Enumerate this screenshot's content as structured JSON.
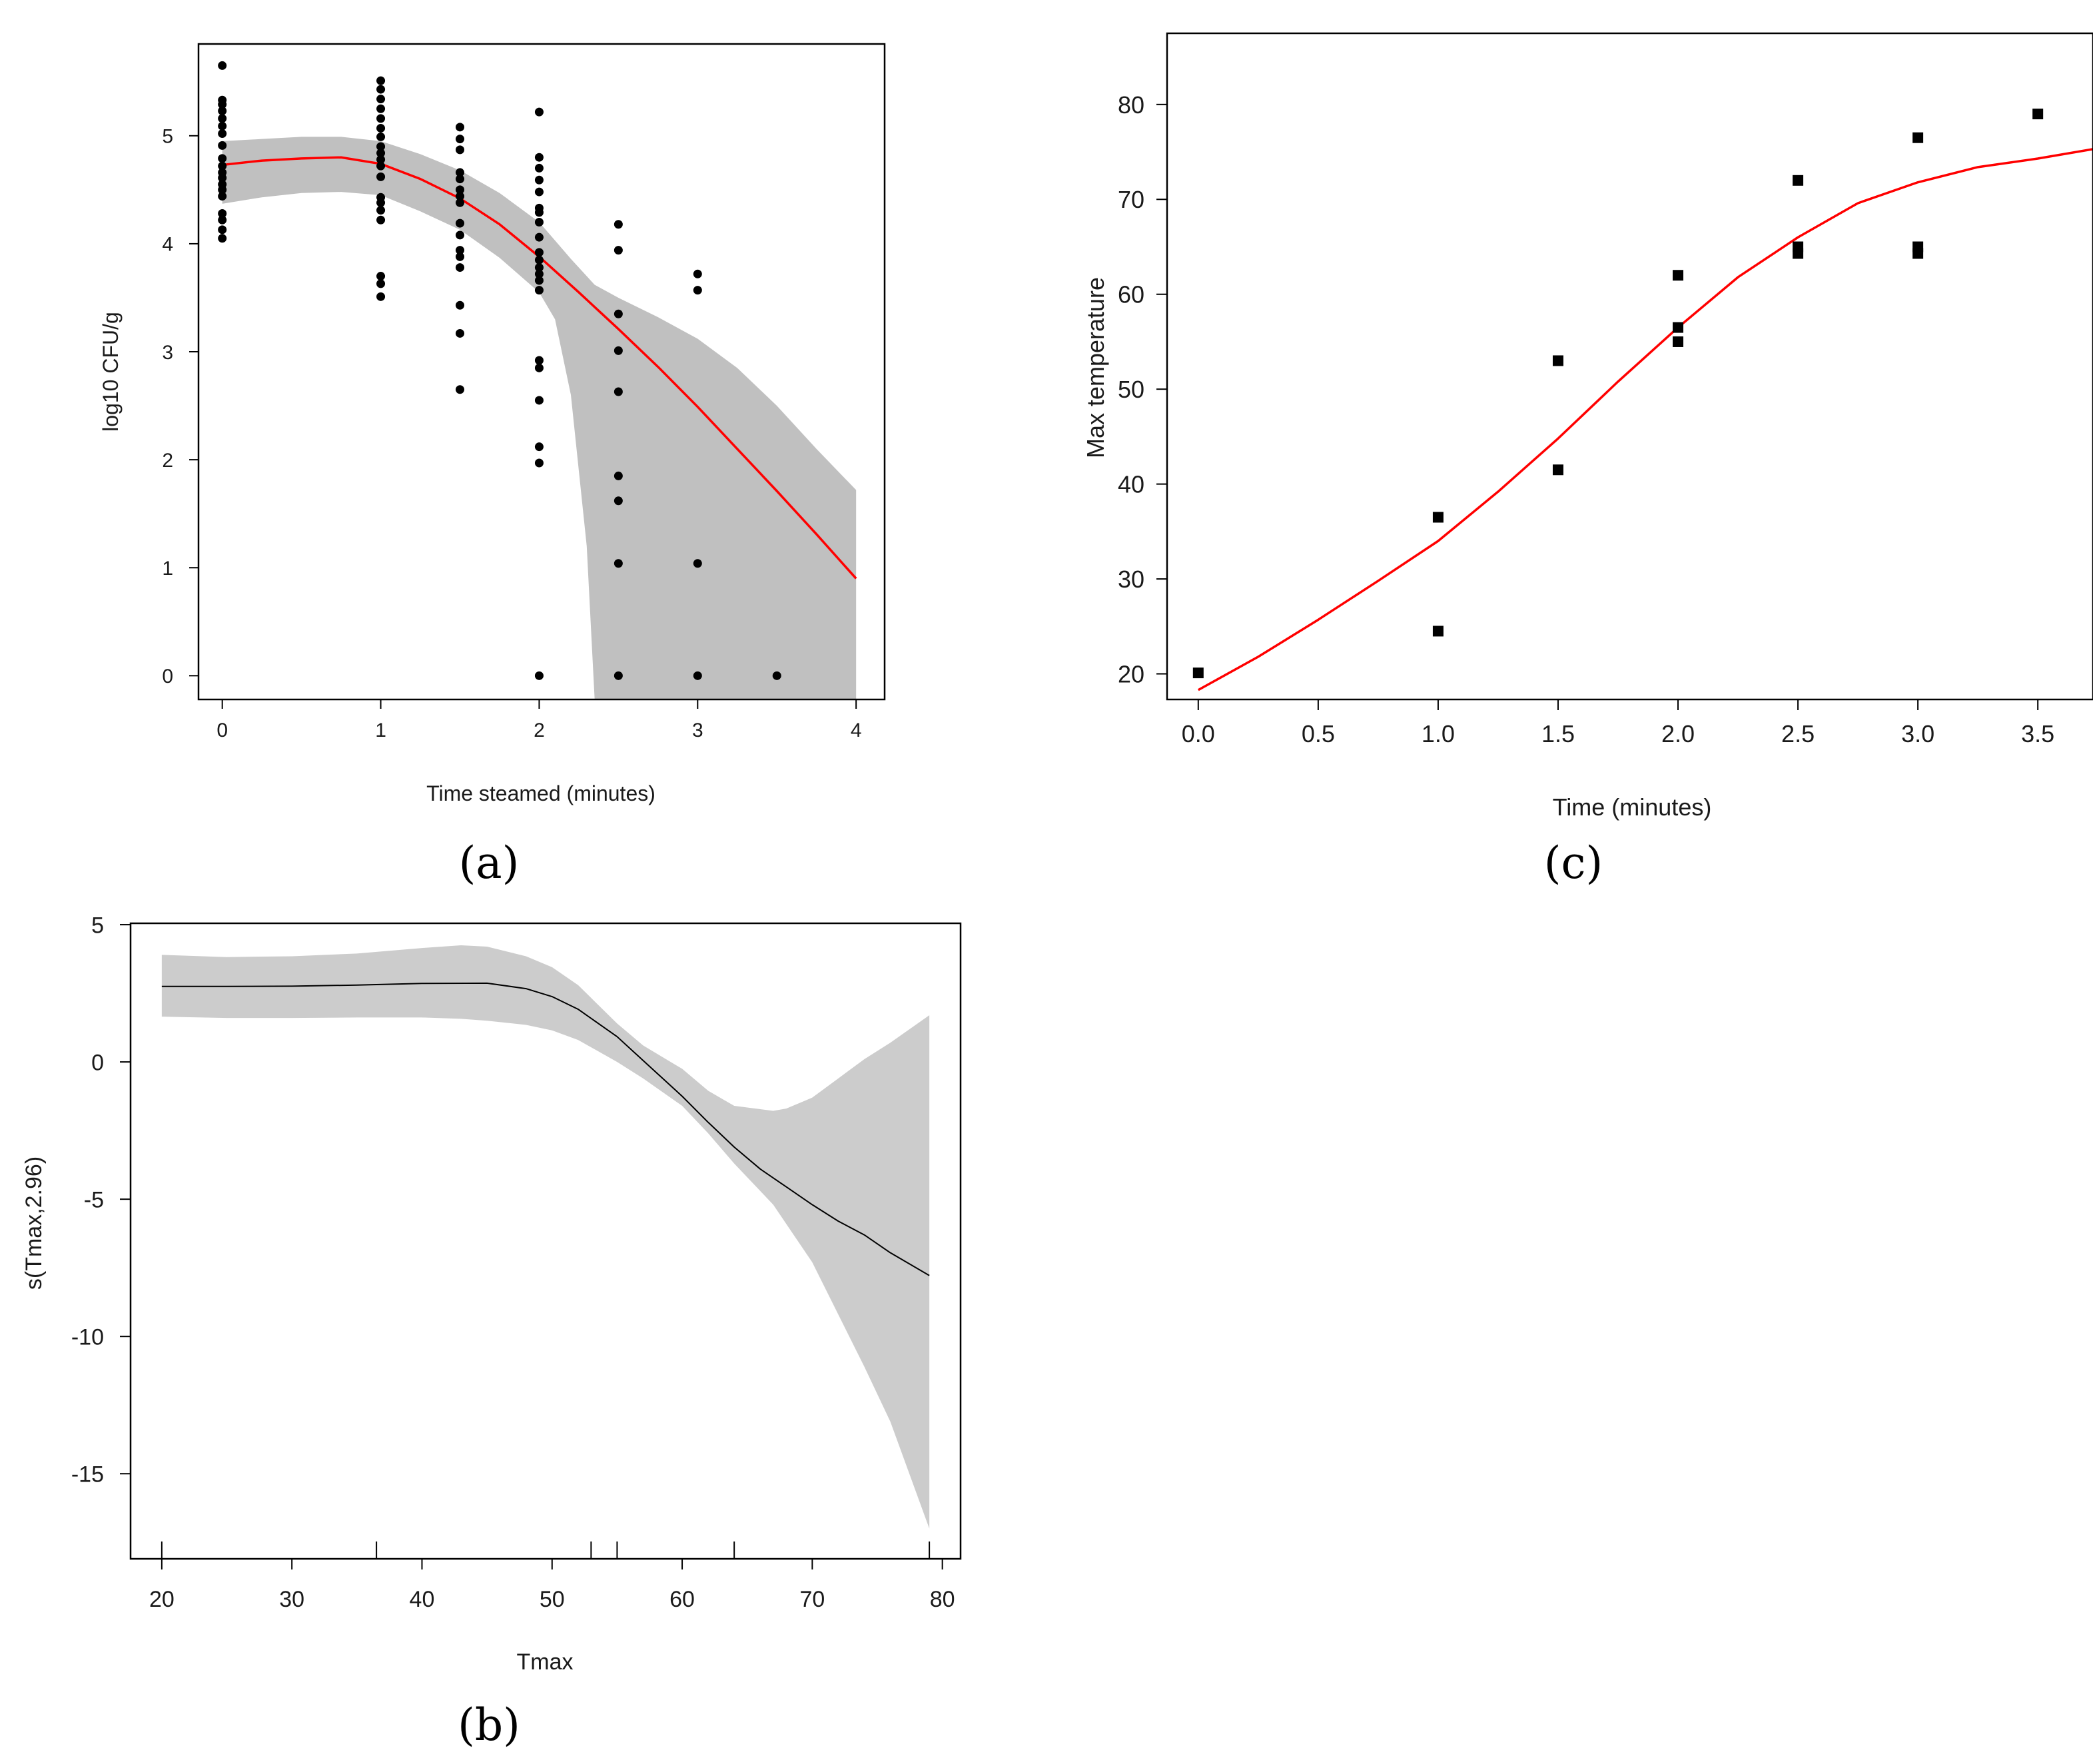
{
  "chart_data": [
    {
      "id": "a",
      "type": "scatter",
      "panel_label": "(a)",
      "title": "",
      "xlabel": "Time steamed (minutes)",
      "ylabel": "log10 CFU/g",
      "xlim": [
        -0.15,
        4.18
      ],
      "ylim": [
        -0.22,
        5.85
      ],
      "xticks": [
        0,
        1,
        2,
        3,
        4
      ],
      "yticks": [
        0,
        1,
        2,
        3,
        4,
        5
      ],
      "points": [
        [
          0,
          5.65
        ],
        [
          0,
          5.33
        ],
        [
          0,
          5.29
        ],
        [
          0,
          5.23
        ],
        [
          0,
          5.16
        ],
        [
          0,
          5.09
        ],
        [
          0,
          5.02
        ],
        [
          0,
          4.91
        ],
        [
          0,
          4.79
        ],
        [
          0,
          4.72
        ],
        [
          0,
          4.66
        ],
        [
          0,
          4.61
        ],
        [
          0,
          4.55
        ],
        [
          0,
          4.5
        ],
        [
          0,
          4.44
        ],
        [
          0,
          4.28
        ],
        [
          0,
          4.22
        ],
        [
          0,
          4.13
        ],
        [
          0,
          4.05
        ],
        [
          1,
          5.51
        ],
        [
          1,
          5.43
        ],
        [
          1,
          5.34
        ],
        [
          1,
          5.25
        ],
        [
          1,
          5.16
        ],
        [
          1,
          5.07
        ],
        [
          1,
          4.99
        ],
        [
          1,
          4.9
        ],
        [
          1,
          4.84
        ],
        [
          1,
          4.78
        ],
        [
          1,
          4.72
        ],
        [
          1,
          4.62
        ],
        [
          1,
          4.43
        ],
        [
          1,
          4.38
        ],
        [
          1,
          4.31
        ],
        [
          1,
          4.22
        ],
        [
          1,
          3.7
        ],
        [
          1,
          3.63
        ],
        [
          1,
          3.51
        ],
        [
          1.5,
          5.08
        ],
        [
          1.5,
          4.97
        ],
        [
          1.5,
          4.87
        ],
        [
          1.5,
          4.66
        ],
        [
          1.5,
          4.6
        ],
        [
          1.5,
          4.5
        ],
        [
          1.5,
          4.44
        ],
        [
          1.5,
          4.38
        ],
        [
          1.5,
          4.19
        ],
        [
          1.5,
          4.08
        ],
        [
          1.5,
          3.94
        ],
        [
          1.5,
          3.88
        ],
        [
          1.5,
          3.78
        ],
        [
          1.5,
          3.43
        ],
        [
          1.5,
          3.17
        ],
        [
          1.5,
          2.65
        ],
        [
          2,
          5.22
        ],
        [
          2,
          4.8
        ],
        [
          2,
          4.7
        ],
        [
          2,
          4.59
        ],
        [
          2,
          4.48
        ],
        [
          2,
          4.33
        ],
        [
          2,
          4.29
        ],
        [
          2,
          4.2
        ],
        [
          2,
          4.06
        ],
        [
          2,
          3.92
        ],
        [
          2,
          3.85
        ],
        [
          2,
          3.78
        ],
        [
          2,
          3.72
        ],
        [
          2,
          3.66
        ],
        [
          2,
          3.57
        ],
        [
          2,
          2.92
        ],
        [
          2,
          2.85
        ],
        [
          2,
          2.55
        ],
        [
          2,
          2.12
        ],
        [
          2,
          1.97
        ],
        [
          2,
          0
        ],
        [
          2.5,
          4.18
        ],
        [
          2.5,
          3.94
        ],
        [
          2.5,
          3.35
        ],
        [
          2.5,
          3.01
        ],
        [
          2.5,
          2.63
        ],
        [
          2.5,
          1.85
        ],
        [
          2.5,
          1.62
        ],
        [
          2.5,
          1.04
        ],
        [
          2.5,
          0
        ],
        [
          3,
          3.72
        ],
        [
          3,
          3.57
        ],
        [
          3,
          1.04
        ],
        [
          3,
          0
        ],
        [
          3.5,
          0
        ]
      ],
      "fit": {
        "color": "#ff0000",
        "x": [
          0,
          0.25,
          0.5,
          0.75,
          1,
          1.25,
          1.5,
          1.75,
          2,
          2.25,
          2.5,
          2.75,
          3,
          3.25,
          3.5,
          3.75,
          4
        ],
        "y": [
          4.73,
          4.77,
          4.79,
          4.8,
          4.74,
          4.6,
          4.42,
          4.18,
          3.88,
          3.55,
          3.21,
          2.86,
          2.49,
          2.1,
          1.71,
          1.31,
          0.9
        ]
      },
      "band": {
        "color": "#c0c0c0",
        "x": [
          0,
          0.25,
          0.5,
          0.75,
          1,
          1.25,
          1.5,
          1.75,
          2,
          2.1,
          2.2,
          2.3,
          2.35,
          2.5,
          2.75,
          3,
          3.25,
          3.5,
          3.75,
          4
        ],
        "lower": [
          4.37,
          4.43,
          4.47,
          4.48,
          4.45,
          4.3,
          4.13,
          3.87,
          3.55,
          3.3,
          2.6,
          1.2,
          -0.22,
          -0.22,
          -0.22,
          -0.22,
          -0.22,
          -0.22,
          -0.22,
          -0.22
        ],
        "upper": [
          4.95,
          4.97,
          4.99,
          4.99,
          4.95,
          4.83,
          4.68,
          4.47,
          4.2,
          4.03,
          3.86,
          3.7,
          3.62,
          3.5,
          3.32,
          3.12,
          2.85,
          2.5,
          2.1,
          1.72
        ]
      }
    },
    {
      "id": "b",
      "type": "line",
      "panel_label": "(b)",
      "title": "",
      "xlabel": "Tmax",
      "ylabel": "s(Tmax,2.96)",
      "xlim": [
        17.6,
        81.4
      ],
      "ylim": [
        -18.1,
        5.05
      ],
      "xticks": [
        20,
        30,
        40,
        50,
        60,
        70,
        80
      ],
      "yticks": [
        5,
        0,
        -5,
        -10,
        -15
      ],
      "rug": [
        20,
        36.5,
        53,
        55,
        64,
        79
      ],
      "fit": {
        "color": "#000000",
        "x": [
          20,
          25,
          30,
          35,
          40,
          45,
          48,
          50,
          52,
          55,
          57,
          60,
          62,
          64,
          66,
          68,
          70,
          72,
          74,
          76,
          79
        ],
        "y": [
          2.75,
          2.75,
          2.76,
          2.8,
          2.86,
          2.87,
          2.67,
          2.38,
          1.92,
          0.92,
          0.05,
          -1.25,
          -2.2,
          -3.1,
          -3.9,
          -4.55,
          -5.2,
          -5.8,
          -6.3,
          -6.95,
          -7.78
        ]
      },
      "band": {
        "color": "#cccccc",
        "x": [
          20,
          25,
          30,
          35,
          40,
          43,
          45,
          48,
          50,
          52,
          55,
          57,
          60,
          62,
          64,
          66,
          67,
          68,
          70,
          72,
          74,
          76,
          79
        ],
        "upper": [
          3.9,
          3.82,
          3.85,
          3.95,
          4.15,
          4.25,
          4.2,
          3.85,
          3.45,
          2.8,
          1.4,
          0.6,
          -0.25,
          -1.05,
          -1.6,
          -1.72,
          -1.78,
          -1.7,
          -1.3,
          -0.6,
          0.1,
          0.7,
          1.7
        ],
        "lower": [
          1.65,
          1.6,
          1.6,
          1.62,
          1.62,
          1.57,
          1.5,
          1.35,
          1.15,
          0.8,
          0.0,
          -0.6,
          -1.6,
          -2.6,
          -3.7,
          -4.7,
          -5.2,
          -5.9,
          -7.3,
          -9.2,
          -11.1,
          -13.1,
          -17.0
        ]
      }
    },
    {
      "id": "c",
      "type": "scatter",
      "panel_label": "(c)",
      "title": "",
      "xlabel": "Time (minutes)",
      "ylabel": "Max temperature",
      "xlim": [
        -0.13,
        3.73
      ],
      "ylim": [
        17.3,
        87.5
      ],
      "xticks": [
        "0.0",
        "0.5",
        "1.0",
        "1.5",
        "2.0",
        "2.5",
        "3.0",
        "3.5"
      ],
      "yticks": [
        20,
        30,
        40,
        50,
        60,
        70,
        80
      ],
      "points": [
        [
          0,
          20.1
        ],
        [
          1,
          36.5
        ],
        [
          1,
          24.5
        ],
        [
          1.5,
          53
        ],
        [
          1.5,
          41.5
        ],
        [
          2,
          62
        ],
        [
          2,
          56.5
        ],
        [
          2,
          55
        ],
        [
          2.5,
          72
        ],
        [
          2.5,
          65
        ],
        [
          2.5,
          64.3
        ],
        [
          3,
          76.5
        ],
        [
          3,
          65
        ],
        [
          3,
          64.3
        ],
        [
          3.5,
          79
        ]
      ],
      "fit": {
        "color": "#ff0000",
        "x": [
          0,
          0.25,
          0.5,
          0.75,
          1,
          1.25,
          1.5,
          1.75,
          2,
          2.25,
          2.5,
          2.75,
          3,
          3.25,
          3.5,
          3.73
        ],
        "y": [
          18.3,
          21.8,
          25.7,
          29.8,
          34,
          39.2,
          44.8,
          50.8,
          56.5,
          61.8,
          66,
          69.6,
          71.8,
          73.4,
          74.3,
          75.3
        ]
      }
    }
  ]
}
